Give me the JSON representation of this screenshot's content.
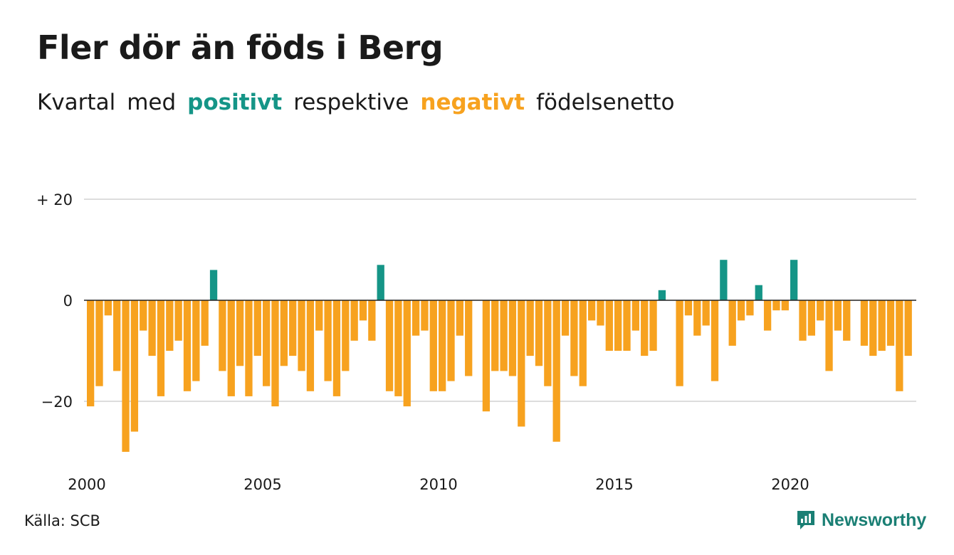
{
  "title": "Fler dör än föds i Berg",
  "subtitle": {
    "part1": "Kvartal",
    "part2": "med",
    "positive": "positivt",
    "part3": "respektive",
    "negative": "negativt",
    "part4": "födelsenetto"
  },
  "source": "Källa: SCB",
  "brand": "Newsworthy",
  "colors": {
    "positive": "#159587",
    "negative": "#f7a21f",
    "grid": "#dddddd",
    "zero": "#222222",
    "brand": "#1a7f74"
  },
  "chart_data": {
    "type": "bar",
    "x_start": "2000 Q1",
    "x_ticks": [
      "2000",
      "2005",
      "2010",
      "2015",
      "2020"
    ],
    "y_ticks": [
      {
        "value": 20,
        "label": "+ 20"
      },
      {
        "value": 0,
        "label": "0"
      },
      {
        "value": -20,
        "label": "−20"
      }
    ],
    "ylim": [
      -32,
      22
    ],
    "values": [
      -21,
      -17,
      -3,
      -14,
      -30,
      -26,
      -6,
      -11,
      -19,
      -10,
      -8,
      -18,
      -16,
      -9,
      6,
      -14,
      -19,
      -13,
      -19,
      -11,
      -17,
      -21,
      -13,
      -11,
      -14,
      -18,
      -6,
      -16,
      -19,
      -14,
      -8,
      -4,
      -8,
      7,
      -18,
      -19,
      -21,
      -7,
      -6,
      -18,
      -18,
      -16,
      -7,
      -15,
      0,
      -22,
      -14,
      -14,
      -15,
      -25,
      -11,
      -13,
      -17,
      -28,
      -7,
      -15,
      -17,
      -4,
      -5,
      -10,
      -10,
      -10,
      -6,
      -11,
      -10,
      2,
      0,
      -17,
      -3,
      -7,
      -5,
      -16,
      8,
      -9,
      -4,
      -3,
      3,
      -6,
      -2,
      -2,
      8,
      -8,
      -7,
      -4,
      -14,
      -6,
      -8,
      0,
      -9,
      -11,
      -10,
      -9,
      -18,
      -11
    ]
  }
}
